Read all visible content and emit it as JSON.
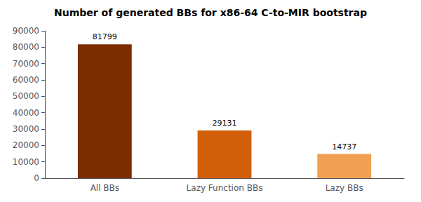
{
  "chart_data": {
    "type": "bar",
    "title": "Number of generated BBs for x86-64 C-to-MIR bootstrap",
    "categories": [
      "All BBs",
      "Lazy Function BBs",
      "Lazy BBs"
    ],
    "values": [
      81799,
      29131,
      14737
    ],
    "colors": [
      "#7B2C00",
      "#D2600A",
      "#F0A050"
    ],
    "ylim": [
      0,
      90000
    ],
    "yticks": [
      0,
      10000,
      20000,
      30000,
      40000,
      50000,
      60000,
      70000,
      80000,
      90000
    ],
    "grid": false,
    "data_labels": true
  }
}
